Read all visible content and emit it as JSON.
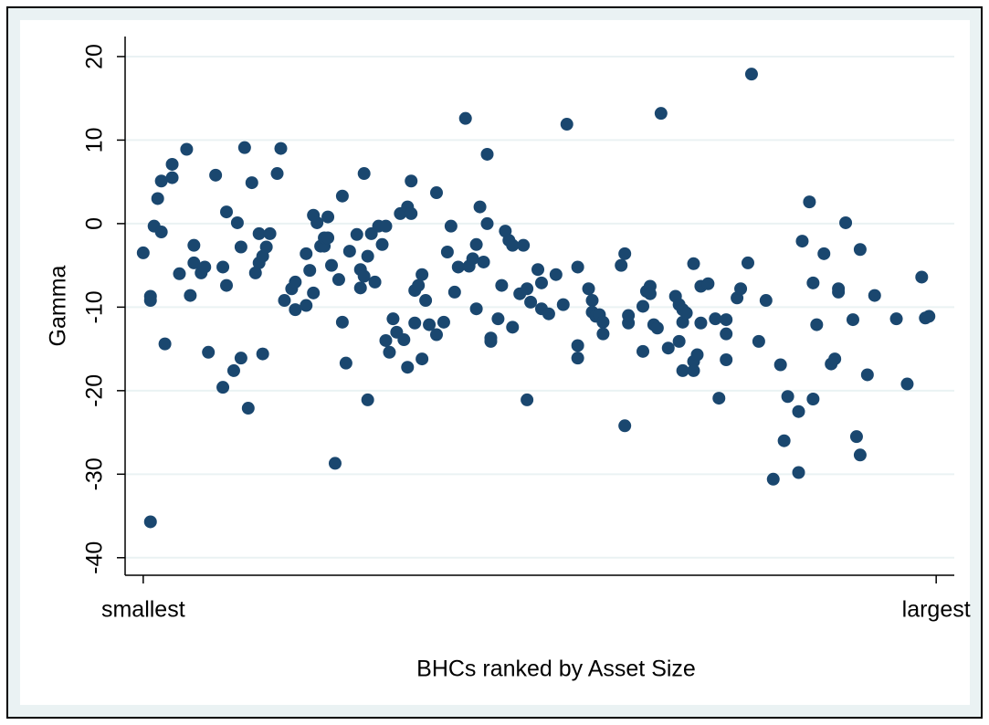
{
  "chart_data": {
    "type": "scatter",
    "x_label": "BHCs ranked by Asset Size",
    "y_label": "Gamma",
    "color": "#1a476f",
    "grid": true,
    "xlim": [
      -4,
      225
    ],
    "ylim": [
      -42.1,
      22.4
    ],
    "xticks": [
      {
        "value": 1,
        "label": "smallest"
      },
      {
        "value": 220,
        "label": "largest"
      }
    ],
    "yticks": [
      -40,
      -30,
      -20,
      -10,
      0,
      10,
      20
    ],
    "x": [
      1,
      3,
      3,
      3,
      4,
      5,
      6,
      6,
      7,
      9,
      9,
      11,
      13,
      14,
      15,
      15,
      17,
      18,
      19,
      21,
      23,
      23,
      24,
      24,
      26,
      27,
      28,
      28,
      29,
      30,
      31,
      32,
      33,
      33,
      34,
      34,
      35,
      36,
      38,
      39,
      40,
      42,
      43,
      43,
      46,
      46,
      47,
      48,
      48,
      49,
      50,
      51,
      51,
      52,
      52,
      53,
      54,
      56,
      55,
      56,
      57,
      58,
      60,
      61,
      61,
      62,
      62,
      63,
      63,
      64,
      65,
      66,
      67,
      68,
      68,
      69,
      70,
      71,
      72,
      73,
      74,
      74,
      75,
      75,
      76,
      76,
      77,
      78,
      78,
      79,
      80,
      82,
      82,
      84,
      85,
      86,
      87,
      88,
      90,
      91,
      92,
      93,
      93,
      94,
      95,
      96,
      96,
      97,
      97,
      99,
      100,
      101,
      102,
      103,
      103,
      105,
      106,
      107,
      107,
      108,
      110,
      111,
      111,
      113,
      115,
      117,
      118,
      121,
      121,
      121,
      124,
      125,
      125,
      126,
      127,
      128,
      128,
      133,
      134,
      134,
      135,
      135,
      139,
      139,
      140,
      141,
      141,
      142,
      143,
      144,
      146,
      148,
      149,
      149,
      150,
      150,
      150,
      151,
      153,
      153,
      153,
      154,
      155,
      155,
      157,
      159,
      160,
      162,
      162,
      162,
      165,
      166,
      168,
      169,
      171,
      173,
      175,
      177,
      178,
      179,
      182,
      182,
      183,
      185,
      186,
      186,
      187,
      189,
      191,
      192,
      193,
      193,
      195,
      197,
      198,
      199,
      199,
      201,
      203,
      209,
      212,
      216,
      217,
      218
    ],
    "values": [
      -3.5,
      -35.7,
      -8.7,
      -9.2,
      -0.3,
      3.0,
      5.1,
      -1.0,
      -14.4,
      7.1,
      5.5,
      -6.0,
      8.9,
      -8.6,
      -4.7,
      -2.6,
      -5.9,
      -5.2,
      -15.4,
      5.8,
      -19.6,
      -5.2,
      1.4,
      -7.4,
      -17.6,
      0.1,
      -16.1,
      -2.8,
      9.1,
      -22.1,
      4.9,
      -5.9,
      -1.2,
      -4.7,
      -3.9,
      -15.6,
      -2.8,
      -1.2,
      6.0,
      9.0,
      -9.2,
      -7.8,
      -10.3,
      -7.0,
      -3.6,
      -9.8,
      -5.6,
      -8.3,
      1.0,
      0.1,
      -2.7,
      -2.7,
      -1.7,
      0.8,
      -1.7,
      -5.0,
      -28.7,
      3.3,
      -6.7,
      -11.8,
      -16.7,
      -3.3,
      -1.3,
      -5.5,
      -7.7,
      -6.3,
      6.0,
      -21.1,
      -3.9,
      -1.2,
      -7.0,
      -0.3,
      -2.5,
      -0.3,
      -14.0,
      -15.4,
      -11.4,
      -13.0,
      1.2,
      -13.9,
      -17.2,
      2.0,
      1.2,
      5.1,
      -11.9,
      -8.0,
      -7.4,
      -16.2,
      -6.1,
      -9.2,
      -12.1,
      3.7,
      -13.3,
      -11.8,
      -3.4,
      -0.3,
      -8.2,
      -5.2,
      12.6,
      -5.1,
      -4.2,
      -10.2,
      -2.5,
      2.0,
      -4.6,
      0.0,
      8.3,
      -14.1,
      -13.7,
      -11.4,
      -7.4,
      -0.9,
      -2.0,
      -12.4,
      -2.6,
      -8.4,
      -2.6,
      -7.8,
      -21.1,
      -9.4,
      -5.5,
      -10.2,
      -7.1,
      -10.8,
      -6.1,
      -9.7,
      11.9,
      -5.2,
      -16.1,
      -14.6,
      -7.8,
      -9.2,
      -10.6,
      -11.1,
      -10.9,
      -11.8,
      -13.2,
      -5.0,
      -3.6,
      -24.2,
      -11.9,
      -11.0,
      -9.9,
      -15.3,
      -8.1,
      -7.5,
      -8.4,
      -12.1,
      -12.5,
      13.2,
      -14.9,
      -8.7,
      -14.1,
      -9.7,
      -11.8,
      -10.3,
      -17.6,
      -10.7,
      -16.5,
      -4.8,
      -17.6,
      -15.7,
      -7.5,
      -11.9,
      -7.2,
      -11.4,
      -20.9,
      -16.3,
      -13.2,
      -11.5,
      -8.9,
      -7.8,
      -4.7,
      17.9,
      -14.1,
      -9.2,
      -30.6,
      -16.9,
      -26.0,
      -20.7,
      -22.5,
      -29.8,
      -2.1,
      2.6,
      -21.0,
      -7.1,
      -12.1,
      -3.6,
      -16.8,
      -16.2,
      -8.2,
      -7.8,
      0.1,
      -11.5,
      -25.5,
      -27.7,
      -3.1,
      -18.1,
      -8.6,
      -11.4,
      -19.2,
      -6.4,
      -11.3,
      -11.1
    ]
  }
}
